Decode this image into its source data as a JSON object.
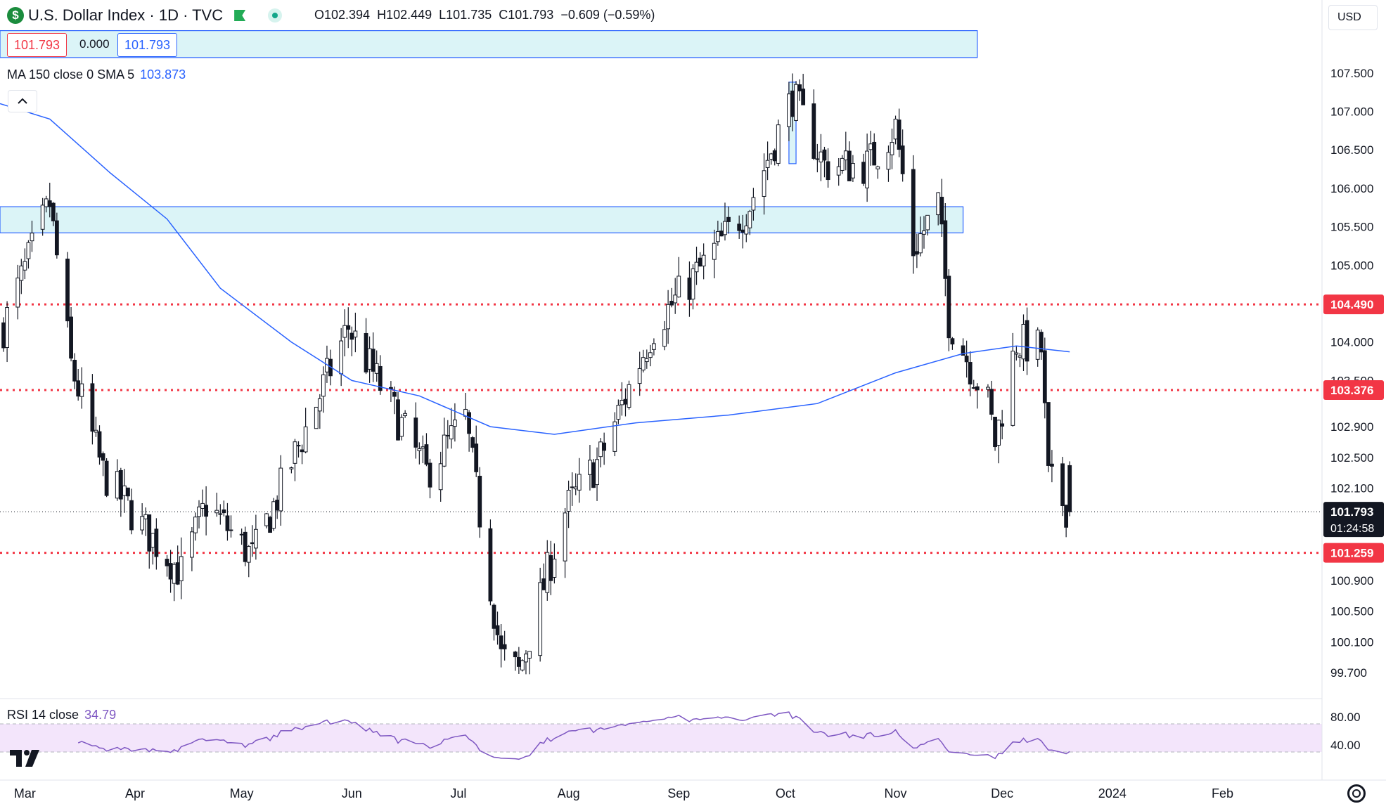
{
  "header": {
    "symbol_icon": "dollar-icon",
    "symbol_glyph": "$",
    "title": "U.S. Dollar Index · 1D · TVC",
    "open": "O102.394",
    "high": "H102.449",
    "low": "L101.735",
    "close": "C101.793",
    "change": "−0.609 (−0.59%)",
    "bid": "101.793",
    "spread": "0.000",
    "ask": "101.793",
    "currency": "USD",
    "collapse_icon": "chevron-up-icon"
  },
  "ma_legend": {
    "label": "MA 150 close 0 SMA 5",
    "value": "103.873"
  },
  "rsi_legend": {
    "label": "RSI 14 close",
    "value": "34.79"
  },
  "price_axis": {
    "ticks": [
      "107.500",
      "107.000",
      "106.500",
      "106.000",
      "105.500",
      "105.000",
      "104.000",
      "103.500",
      "102.900",
      "102.500",
      "102.100",
      "100.900",
      "100.500",
      "100.100",
      "99.700"
    ],
    "labels": [
      {
        "text": "104.490",
        "value": 104.49,
        "color": "#f23645"
      },
      {
        "text": "103.376",
        "value": 103.376,
        "color": "#f23645"
      },
      {
        "text": "101.259",
        "value": 101.259,
        "color": "#f23645"
      }
    ],
    "current": {
      "text": "101.793",
      "countdown": "01:24:58",
      "color": "#131722"
    }
  },
  "rsi_axis": {
    "ticks": [
      "80.00",
      "40.00"
    ]
  },
  "time_axis": {
    "labels": [
      "Mar",
      "Apr",
      "May",
      "Jun",
      "Jul",
      "Aug",
      "Sep",
      "Oct",
      "Nov",
      "Dec",
      "2024",
      "Feb"
    ]
  },
  "chart_data": {
    "type": "candlestick",
    "title": "U.S. Dollar Index · 1D · TVC",
    "x_range": [
      "2023-02-22",
      "2024-02-29"
    ],
    "y_range": [
      99.4,
      107.9
    ],
    "colors": {
      "candle": "#131722",
      "ma": "#2962ff",
      "rsi": "#7e57c2",
      "level": "#f23645",
      "zone_fill": "#dbf4f7",
      "zone_border": "#2962ff"
    },
    "horizontal_levels": [
      104.49,
      103.376,
      101.259
    ],
    "current_price_line": 101.793,
    "zones": [
      {
        "y_top": 105.76,
        "y_bottom": 105.42,
        "x_start": "2023-02-22",
        "x_end": "2023-11-20"
      },
      {
        "y_top": 107.38,
        "y_bottom": 106.32,
        "x_start": "2023-10-02",
        "x_end": "2023-10-04"
      },
      {
        "y_top": 108.05,
        "y_bottom": 107.7,
        "x_start": "2023-02-22",
        "x_end": "2023-11-24"
      }
    ],
    "candles": {
      "keypoints": [
        [
          "2023-02-23",
          104.2
        ],
        [
          "2023-03-08",
          105.8
        ],
        [
          "2023-03-14",
          103.7
        ],
        [
          "2023-03-23",
          102.3
        ],
        [
          "2023-04-03",
          101.6
        ],
        [
          "2023-04-14",
          101.0
        ],
        [
          "2023-04-21",
          101.9
        ],
        [
          "2023-05-04",
          101.2
        ],
        [
          "2023-05-31",
          104.2
        ],
        [
          "2023-06-14",
          103.0
        ],
        [
          "2023-06-22",
          102.3
        ],
        [
          "2023-07-03",
          103.0
        ],
        [
          "2023-07-13",
          99.9
        ],
        [
          "2023-07-18",
          99.7
        ],
        [
          "2023-07-31",
          101.8
        ],
        [
          "2023-08-10",
          102.5
        ],
        [
          "2023-08-25",
          104.2
        ],
        [
          "2023-09-08",
          105.0
        ],
        [
          "2023-09-21",
          105.8
        ],
        [
          "2023-10-03",
          107.2
        ],
        [
          "2023-10-12",
          106.3
        ],
        [
          "2023-10-24",
          106.3
        ],
        [
          "2023-11-01",
          106.8
        ],
        [
          "2023-11-06",
          105.2
        ],
        [
          "2023-11-13",
          105.8
        ],
        [
          "2023-11-16",
          104.3
        ],
        [
          "2023-11-27",
          103.2
        ],
        [
          "2023-11-29",
          102.7
        ],
        [
          "2023-12-05",
          104.0
        ],
        [
          "2023-12-12",
          103.9
        ],
        [
          "2023-12-14",
          102.2
        ],
        [
          "2023-12-20",
          101.79
        ]
      ],
      "last": {
        "date": "2023-12-20",
        "open": 102.394,
        "high": 102.449,
        "low": 101.735,
        "close": 101.793
      }
    },
    "ma150": [
      [
        "2023-02-22",
        107.1
      ],
      [
        "2023-03-08",
        106.9
      ],
      [
        "2023-03-25",
        106.2
      ],
      [
        "2023-04-10",
        105.6
      ],
      [
        "2023-04-25",
        104.7
      ],
      [
        "2023-05-15",
        104.0
      ],
      [
        "2023-06-01",
        103.5
      ],
      [
        "2023-06-20",
        103.3
      ],
      [
        "2023-07-10",
        102.9
      ],
      [
        "2023-07-28",
        102.8
      ],
      [
        "2023-08-20",
        102.95
      ],
      [
        "2023-09-15",
        103.05
      ],
      [
        "2023-10-10",
        103.2
      ],
      [
        "2023-11-01",
        103.6
      ],
      [
        "2023-11-20",
        103.85
      ],
      [
        "2023-12-05",
        103.95
      ],
      [
        "2023-12-20",
        103.873
      ]
    ],
    "rsi": {
      "range": [
        0,
        100
      ],
      "band": [
        30,
        70
      ],
      "last": 34.79
    }
  }
}
